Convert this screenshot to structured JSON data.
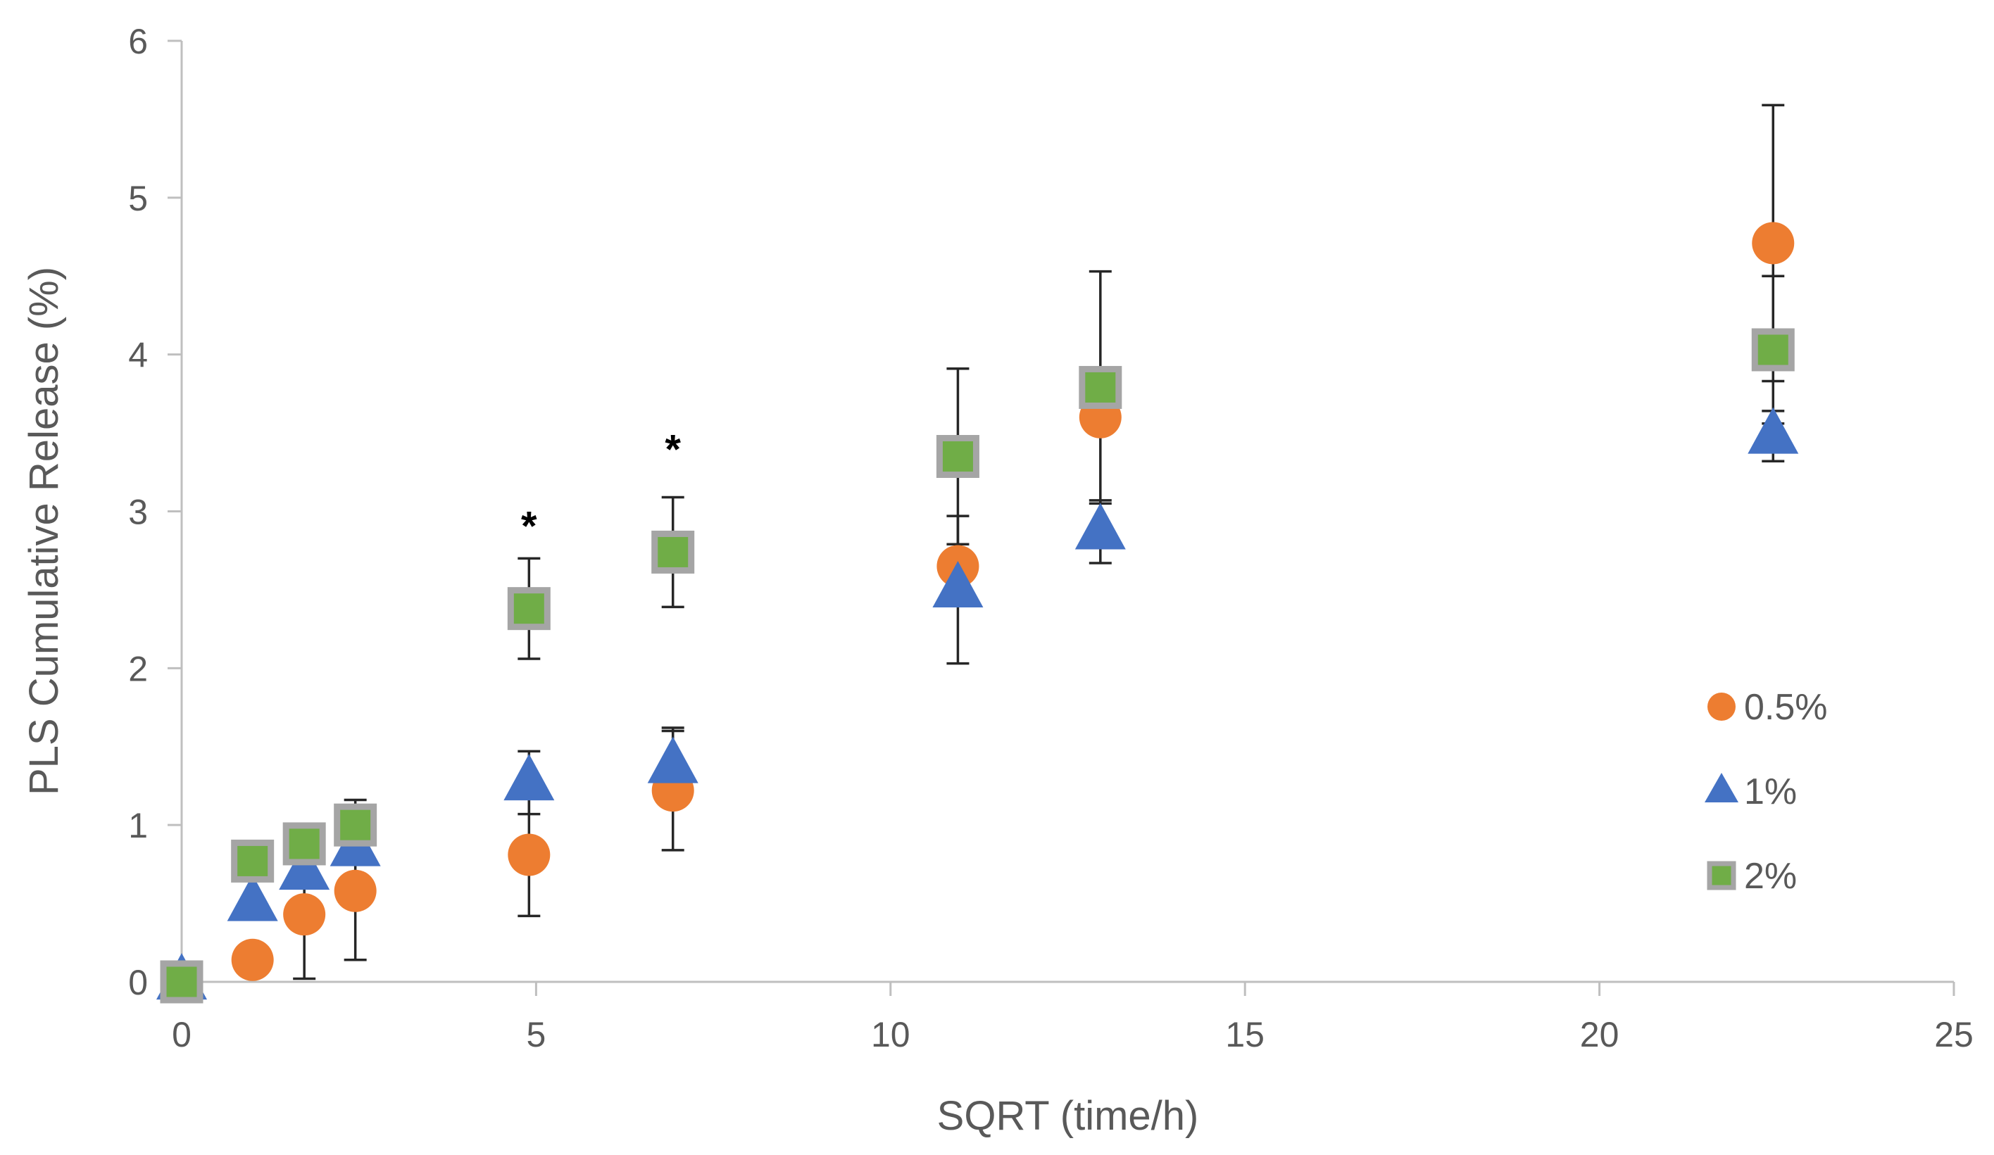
{
  "chart_data": {
    "type": "scatter",
    "title": "",
    "xlabel": "SQRT (time/h)",
    "ylabel": "PLS Cumulative Release (%)",
    "xlim": [
      0,
      25
    ],
    "ylim": [
      0,
      6
    ],
    "xticks": [
      0,
      5,
      10,
      15,
      20,
      25
    ],
    "yticks": [
      0,
      1,
      2,
      3,
      4,
      5,
      6
    ],
    "grid": false,
    "legend_position": "right",
    "series": [
      {
        "name": "0.5%",
        "marker": "circle",
        "color": "#ED7D31",
        "x": [
          0,
          1,
          1.73,
          2.45,
          4.9,
          6.93,
          10.95,
          12.96,
          22.45
        ],
        "y": [
          0,
          0.14,
          0.43,
          0.58,
          0.81,
          1.22,
          2.65,
          3.6,
          4.71
        ],
        "err": [
          0,
          0,
          0.41,
          0.44,
          0.39,
          0.38,
          0,
          0,
          0.88
        ]
      },
      {
        "name": "1%",
        "marker": "triangle",
        "color": "#4472C4",
        "x": [
          0,
          1,
          1.73,
          2.45,
          4.9,
          6.93,
          10.95,
          12.96,
          22.45
        ],
        "y": [
          0,
          0.5,
          0.7,
          0.85,
          1.27,
          1.38,
          2.5,
          2.87,
          3.48
        ],
        "err": [
          0,
          0,
          0,
          0,
          0.2,
          0.24,
          0.47,
          0.2,
          0.16
        ]
      },
      {
        "name": "2%",
        "marker": "square",
        "color": "#70AD47",
        "border": "#A5A5A5",
        "x": [
          0,
          1,
          1.73,
          2.45,
          4.9,
          6.93,
          10.95,
          12.96,
          22.45
        ],
        "y": [
          0,
          0.77,
          0.88,
          1.0,
          2.38,
          2.74,
          3.35,
          3.79,
          4.03
        ],
        "err": [
          0,
          0,
          0,
          0.16,
          0.32,
          0.35,
          0.56,
          0.74,
          0.47
        ]
      }
    ],
    "annotations": [
      {
        "text": "*",
        "x": 4.9,
        "y": 2.95
      },
      {
        "text": "*",
        "x": 6.93,
        "y": 3.44
      }
    ]
  }
}
